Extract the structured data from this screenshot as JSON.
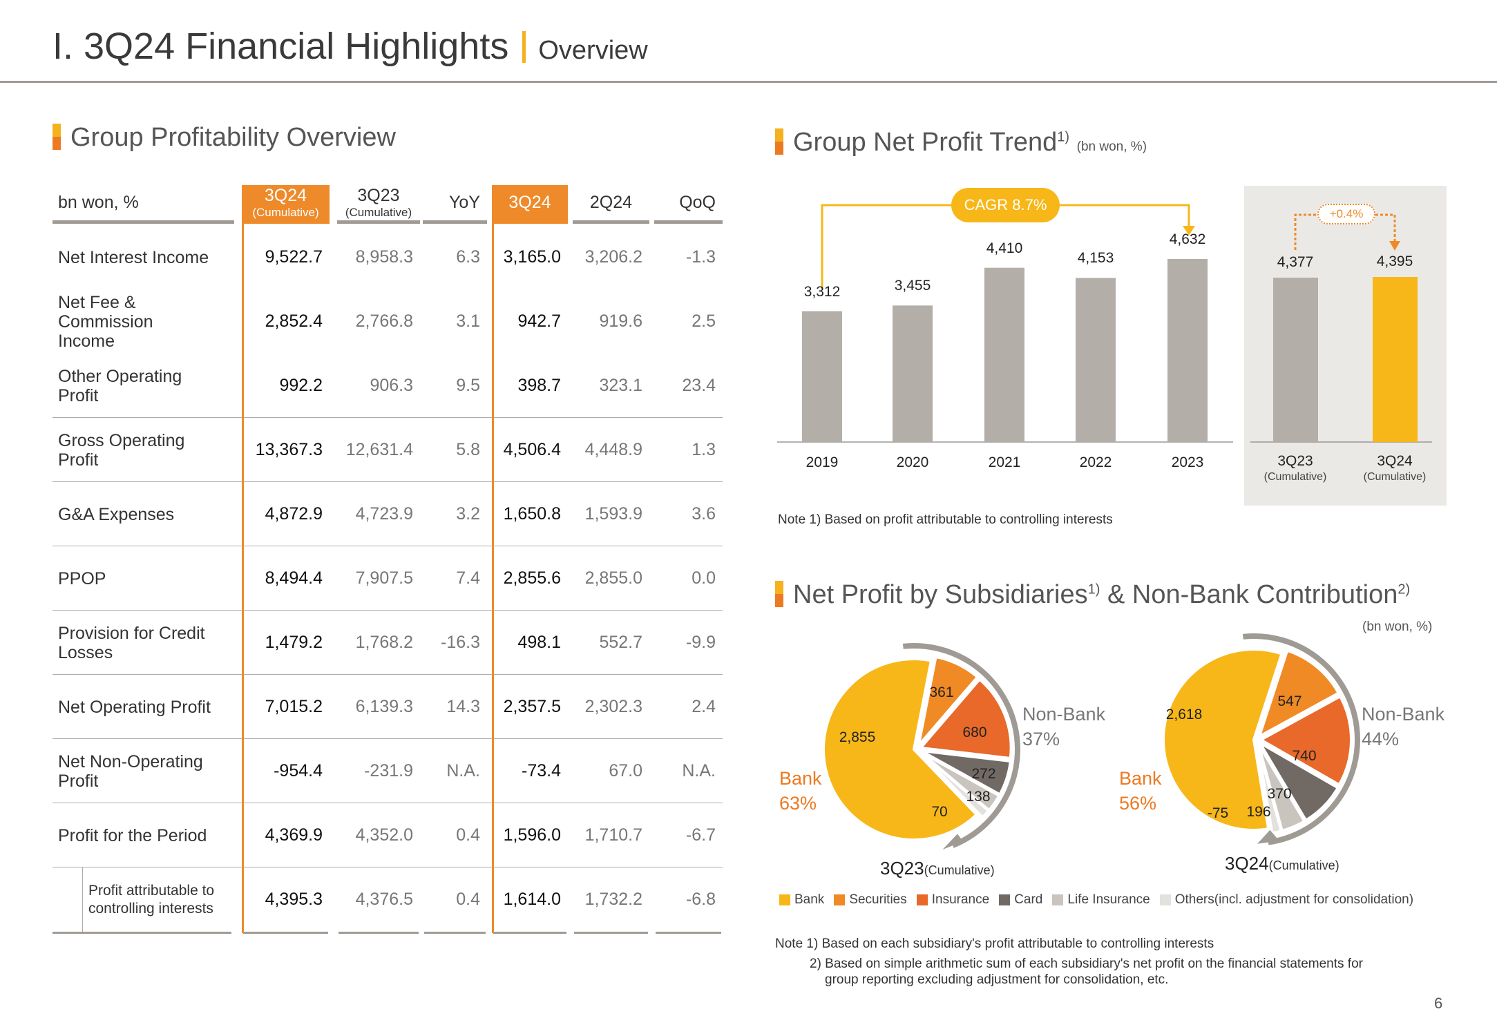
{
  "header": {
    "title": "I. 3Q24 Financial Highlights",
    "subtitle": "Overview"
  },
  "profitability": {
    "title": "Group Profitability Overview",
    "columns": [
      {
        "label": "bn won, %"
      },
      {
        "label": "3Q24",
        "sub": "(Cumulative)"
      },
      {
        "label": "3Q23",
        "sub": "(Cumulative)"
      },
      {
        "label": "YoY"
      },
      {
        "label": "3Q24"
      },
      {
        "label": "2Q24"
      },
      {
        "label": "QoQ"
      }
    ],
    "rows": [
      {
        "label": "Net Interest Income",
        "values": [
          "9,522.7",
          "8,958.3",
          "6.3",
          "3,165.0",
          "3,206.2",
          "-1.3"
        ]
      },
      {
        "label": "Net Fee & Commission Income",
        "values": [
          "2,852.4",
          "2,766.8",
          "3.1",
          "942.7",
          "919.6",
          "2.5"
        ]
      },
      {
        "label": "Other Operating Profit",
        "values": [
          "992.2",
          "906.3",
          "9.5",
          "398.7",
          "323.1",
          "23.4"
        ]
      },
      {
        "label": "Gross Operating Profit",
        "values": [
          "13,367.3",
          "12,631.4",
          "5.8",
          "4,506.4",
          "4,448.9",
          "1.3"
        ]
      },
      {
        "label": "G&A Expenses",
        "values": [
          "4,872.9",
          "4,723.9",
          "3.2",
          "1,650.8",
          "1,593.9",
          "3.6"
        ]
      },
      {
        "label": "PPOP",
        "values": [
          "8,494.4",
          "7,907.5",
          "7.4",
          "2,855.6",
          "2,855.0",
          "0.0"
        ]
      },
      {
        "label": "Provision for Credit Losses",
        "values": [
          "1,479.2",
          "1,768.2",
          "-16.3",
          "498.1",
          "552.7",
          "-9.9"
        ]
      },
      {
        "label": "Net Operating Profit",
        "values": [
          "7,015.2",
          "6,139.3",
          "14.3",
          "2,357.5",
          "2,302.3",
          "2.4"
        ]
      },
      {
        "label": "Net Non-Operating Profit",
        "values": [
          "-954.4",
          "-231.9",
          "N.A.",
          "-73.4",
          "67.0",
          "N.A."
        ]
      },
      {
        "label": "Profit for the Period",
        "values": [
          "4,369.9",
          "4,352.0",
          "0.4",
          "1,596.0",
          "1,710.7",
          "-6.7"
        ]
      },
      {
        "label": "Profit attributable to controlling interests",
        "values": [
          "4,395.3",
          "4,376.5",
          "0.4",
          "1,614.0",
          "1,732.2",
          "-6.8"
        ]
      }
    ]
  },
  "trend": {
    "title": "Group Net Profit Trend",
    "title_sup": "1)",
    "unit": "(bn won, %)",
    "cagr": "CAGR 8.7%",
    "change": "+0.4%",
    "note": "Note 1) Based on profit attributable to controlling interests"
  },
  "subsidiaries": {
    "title": "Net Profit by Subsidiaries",
    "sup1": "1)",
    "title2": "& Non-Bank Contribution",
    "sup2": "2)",
    "unit": "(bn won, %)",
    "non_bank_label": "Non-Bank",
    "bank_label": "Bank",
    "legend": [
      "Bank",
      "Securities",
      "Insurance",
      "Card",
      "Life Insurance",
      "Others(incl. adjustment for consolidation)"
    ],
    "notes": [
      "Note 1) Based on each subsidiary's profit attributable to controlling interests",
      "2) Based on simple arithmetic sum of each subsidiary's net profit on the financial statements for",
      "group reporting excluding adjustment for consolidation, etc."
    ]
  },
  "page_number": "6",
  "colors": {
    "orange": "#ee8a2a",
    "yellow": "#f7b718",
    "gray": "#b3aea8",
    "bank": "#f7b718",
    "securities": "#f08a24",
    "insurance": "#e8692a",
    "card": "#716a64",
    "life": "#c9c4be",
    "others": "#e3e1de"
  },
  "chart_data": [
    {
      "type": "bar",
      "title": "Group Net Profit Trend",
      "categories": [
        "2019",
        "2020",
        "2021",
        "2022",
        "2023"
      ],
      "values": [
        3312,
        3455,
        4410,
        4153,
        4632
      ],
      "labels": [
        "3,312",
        "3,455",
        "4,410",
        "4,153",
        "4,632"
      ]
    },
    {
      "type": "bar",
      "categories": [
        "3Q23",
        "3Q24"
      ],
      "category_sub": [
        "(Cumulative)",
        "(Cumulative)"
      ],
      "values": [
        4377,
        4395
      ],
      "labels": [
        "4,377",
        "4,395"
      ]
    },
    {
      "type": "pie",
      "title": "3Q23",
      "title_sub": "(Cumulative)",
      "categories": [
        "Bank",
        "Securities",
        "Insurance",
        "Card",
        "Life Insurance",
        "Others"
      ],
      "values": [
        2855,
        361,
        680,
        272,
        138,
        70
      ],
      "labels": [
        "2,855",
        "361",
        "680",
        "272",
        "138",
        "70"
      ],
      "bank_pct": "63%",
      "non_bank_pct": "37%"
    },
    {
      "type": "pie",
      "title": "3Q24",
      "title_sub": "(Cumulative)",
      "categories": [
        "Bank",
        "Securities",
        "Insurance",
        "Card",
        "Life Insurance",
        "Others"
      ],
      "values": [
        2618,
        547,
        740,
        370,
        196,
        -75
      ],
      "labels": [
        "2,618",
        "547",
        "740",
        "370",
        "196",
        "-75"
      ],
      "bank_pct": "56%",
      "non_bank_pct": "44%"
    }
  ]
}
